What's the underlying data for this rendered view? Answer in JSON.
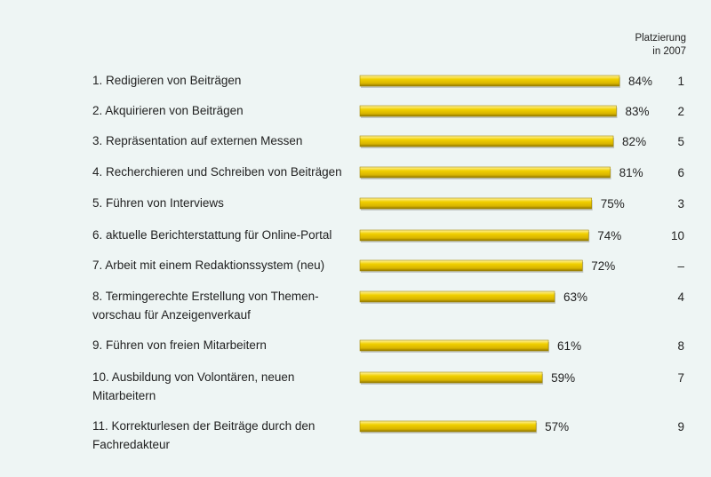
{
  "chart_data": {
    "type": "bar",
    "orientation": "horizontal",
    "rank_column_header": "Platzierung\nin 2007",
    "xlim": [
      0,
      100
    ],
    "bar_color": "#e8c400",
    "bar_dark": "#a58a00",
    "background": "#eef5f4",
    "rows": [
      {
        "label": "1. Redigieren von Beiträgen",
        "value": 84,
        "value_label": "84%",
        "rank_2007": "1"
      },
      {
        "label": "2. Akquirieren von Beiträgen",
        "value": 83,
        "value_label": "83%",
        "rank_2007": "2"
      },
      {
        "label": "3. Repräsentation auf externen Messen",
        "value": 82,
        "value_label": "82%",
        "rank_2007": "5"
      },
      {
        "label": "4. Recherchieren und Schreiben von Beiträgen",
        "value": 81,
        "value_label": "81%",
        "rank_2007": "6"
      },
      {
        "label": "5. Führen von Interviews",
        "value": 75,
        "value_label": "75%",
        "rank_2007": "3"
      },
      {
        "label": "6. aktuelle Berichterstattung für Online-Portal",
        "value": 74,
        "value_label": "74%",
        "rank_2007": "10"
      },
      {
        "label": "7. Arbeit mit einem Redaktionssystem (neu)",
        "value": 72,
        "value_label": "72%",
        "rank_2007": "–"
      },
      {
        "label": "8. Termingerechte Erstellung von Themen-\nvorschau für Anzeigenverkauf",
        "value": 63,
        "value_label": "63%",
        "rank_2007": "4"
      },
      {
        "label": "9. Führen von freien Mitarbeitern",
        "value": 61,
        "value_label": "61%",
        "rank_2007": "8"
      },
      {
        "label": "10. Ausbildung von Volontären, neuen\nMitarbeitern",
        "value": 59,
        "value_label": "59%",
        "rank_2007": "7"
      },
      {
        "label": "11. Korrekturlesen der Beiträge durch den\nFachredakteur",
        "value": 57,
        "value_label": "57%",
        "rank_2007": "9"
      }
    ]
  }
}
